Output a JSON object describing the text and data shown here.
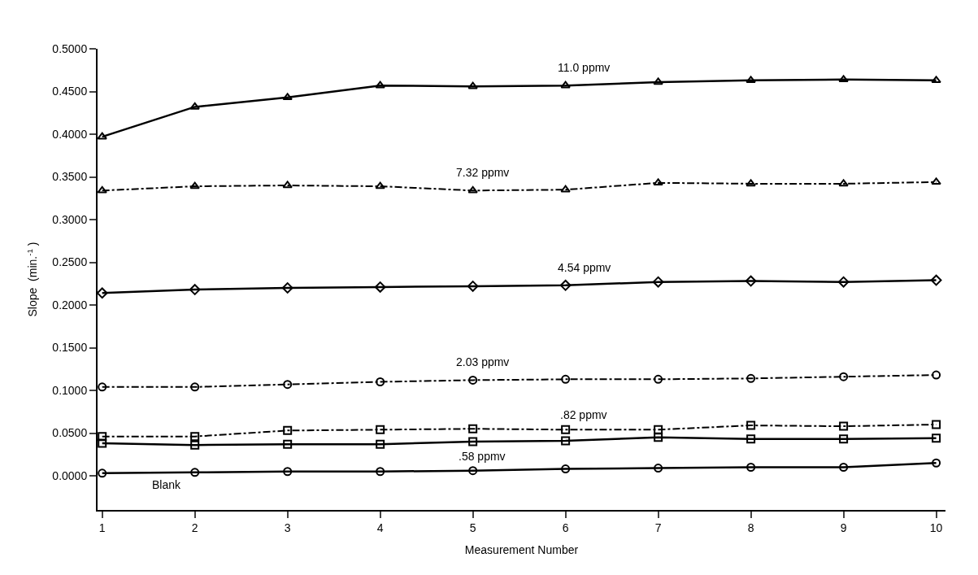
{
  "chart_data": {
    "type": "line",
    "xlabel": "Measurement Number",
    "ylabel": "Slope  (min.$^{-1}$ )",
    "x": [
      1,
      2,
      3,
      4,
      5,
      6,
      7,
      8,
      9,
      10
    ],
    "xlim": [
      0.95,
      10.1
    ],
    "xticks": [
      1,
      2,
      3,
      4,
      5,
      6,
      7,
      8,
      9,
      10
    ],
    "ylim": [
      -0.04,
      0.5
    ],
    "yticks": [
      {
        "value": 0,
        "label": "0.0000"
      },
      {
        "value": 0.05,
        "label": "0.0500"
      },
      {
        "value": 0.1,
        "label": "0.1000"
      },
      {
        "value": 0.15,
        "label": "0.1500"
      },
      {
        "value": 0.2,
        "label": "0.2000"
      },
      {
        "value": 0.25,
        "label": "0.2500"
      },
      {
        "value": 0.3,
        "label": "0.3000"
      },
      {
        "value": 0.35,
        "label": "0.3500"
      },
      {
        "value": 0.4,
        "label": "0.4000"
      },
      {
        "value": 0.45,
        "label": "0.4500"
      },
      {
        "value": 0.5,
        "label": "0.5000"
      }
    ],
    "legend": false,
    "series": [
      {
        "name": "11.0 ppmv",
        "color": "#000000",
        "marker": "triangle",
        "line_style": "solid",
        "values": [
          0.397,
          0.432,
          0.443,
          0.457,
          0.456,
          0.457,
          0.461,
          0.463,
          0.464,
          0.463
        ]
      },
      {
        "name": "7.32 ppmv",
        "color": "#000000",
        "marker": "triangle",
        "line_style": "dashed",
        "values": [
          0.334,
          0.339,
          0.34,
          0.339,
          0.334,
          0.335,
          0.343,
          0.342,
          0.342,
          0.344
        ]
      },
      {
        "name": "4.54 ppmv",
        "color": "#000000",
        "marker": "diamond",
        "line_style": "solid",
        "values": [
          0.214,
          0.218,
          0.22,
          0.221,
          0.222,
          0.223,
          0.227,
          0.228,
          0.227,
          0.229
        ]
      },
      {
        "name": "2.03 ppmv",
        "color": "#000000",
        "marker": "circle",
        "line_style": "dashed",
        "values": [
          0.104,
          0.104,
          0.107,
          0.11,
          0.112,
          0.113,
          0.113,
          0.114,
          0.116,
          0.118
        ]
      },
      {
        "name": ".82 ppmv",
        "color": "#000000",
        "marker": "square",
        "line_style": "dashed",
        "values": [
          0.046,
          0.046,
          0.053,
          0.054,
          0.055,
          0.054,
          0.054,
          0.059,
          0.058,
          0.06
        ]
      },
      {
        "name": ".58 ppmv",
        "color": "#000000",
        "marker": "square",
        "line_style": "solid",
        "values": [
          0.038,
          0.036,
          0.037,
          0.037,
          0.04,
          0.041,
          0.045,
          0.043,
          0.043,
          0.044
        ]
      },
      {
        "name": "Blank",
        "color": "#000000",
        "marker": "circle",
        "line_style": "solid",
        "values": [
          0.003,
          0.004,
          0.005,
          0.005,
          0.006,
          0.008,
          0.009,
          0.01,
          0.01,
          0.015
        ]
      }
    ]
  }
}
